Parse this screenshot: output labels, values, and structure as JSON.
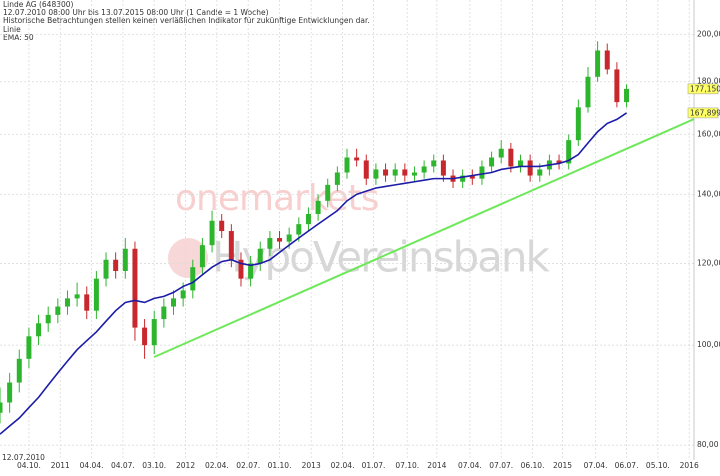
{
  "chart_data": {
    "type": "candlestick",
    "title": "Linde AG (648300)",
    "subtitle": "12.07.2010 08:00 Uhr bis 13.07.2015 08:00 Uhr (1 Candle = 1 Woche)",
    "disclaimer": "Historische Betrachtungen stellen keinen verläßlichen Indikator für zukünftige Entwicklungen dar.",
    "watermark": [
      "onemarkets",
      "HypoVereinsbank"
    ],
    "x_start_label": "12.07.2010",
    "x": [
      "2010-07-12",
      "2010-08-09",
      "2010-09-06",
      "2010-10-04",
      "2010-11-01",
      "2010-11-29",
      "2010-12-27",
      "2011-01-24",
      "2011-02-21",
      "2011-03-21",
      "2011-04-18",
      "2011-05-16",
      "2011-06-13",
      "2011-07-11",
      "2011-08-08",
      "2011-09-05",
      "2011-10-03",
      "2011-10-31",
      "2011-11-28",
      "2011-12-26",
      "2012-01-23",
      "2012-02-20",
      "2012-03-19",
      "2012-04-16",
      "2012-05-14",
      "2012-06-11",
      "2012-07-09",
      "2012-08-06",
      "2012-09-03",
      "2012-10-01",
      "2012-10-29",
      "2012-11-26",
      "2012-12-24",
      "2013-01-21",
      "2013-02-18",
      "2013-03-18",
      "2013-04-15",
      "2013-05-13",
      "2013-06-10",
      "2013-07-08",
      "2013-08-05",
      "2013-09-02",
      "2013-09-30",
      "2013-10-28",
      "2013-11-25",
      "2013-12-23",
      "2014-01-20",
      "2014-02-17",
      "2014-03-17",
      "2014-04-14",
      "2014-05-12",
      "2014-06-09",
      "2014-07-07",
      "2014-08-04",
      "2014-09-01",
      "2014-09-29",
      "2014-10-27",
      "2014-11-24",
      "2014-12-22",
      "2015-01-19",
      "2015-02-16",
      "2015-03-16",
      "2015-04-13",
      "2015-05-11",
      "2015-06-08",
      "2015-07-06"
    ],
    "open": [
      86,
      88,
      92,
      97,
      102,
      105,
      107,
      109,
      111,
      112,
      108,
      116,
      121,
      118,
      124,
      104,
      100,
      106,
      109,
      111,
      113,
      119,
      125,
      132,
      129,
      121,
      116,
      120,
      124,
      127,
      126,
      128,
      131,
      134,
      138,
      143,
      147,
      152,
      151,
      145,
      148,
      146,
      148,
      146,
      147,
      149,
      151,
      146,
      144,
      146,
      145,
      149,
      152,
      155,
      149,
      151,
      146,
      148,
      151,
      150,
      158,
      170,
      182,
      193,
      185,
      172
    ],
    "high": [
      91,
      94,
      99,
      104,
      107,
      109,
      111,
      113,
      115,
      114,
      118,
      123,
      123,
      127,
      126,
      106,
      108,
      111,
      113,
      115,
      121,
      127,
      135,
      134,
      131,
      123,
      122,
      126,
      129,
      129,
      130,
      133,
      136,
      140,
      145,
      149,
      155,
      155,
      153,
      150,
      150,
      150,
      150,
      149,
      151,
      153,
      153,
      148,
      148,
      148,
      151,
      154,
      158,
      157,
      153,
      153,
      150,
      153,
      153,
      160,
      173,
      186,
      197,
      196,
      188,
      179
    ],
    "low": [
      84,
      86,
      90,
      95,
      100,
      103,
      105,
      107,
      109,
      106,
      106,
      114,
      116,
      116,
      101,
      97,
      98,
      104,
      107,
      109,
      111,
      117,
      123,
      127,
      119,
      114,
      114,
      118,
      122,
      124,
      124,
      126,
      129,
      132,
      136,
      141,
      145,
      149,
      143,
      143,
      144,
      144,
      144,
      144,
      145,
      147,
      144,
      142,
      142,
      143,
      143,
      147,
      150,
      147,
      147,
      144,
      144,
      146,
      148,
      148,
      156,
      168,
      180,
      183,
      170,
      170
    ],
    "close": [
      88,
      92,
      97,
      102,
      105,
      107,
      109,
      111,
      112,
      108,
      116,
      121,
      118,
      124,
      104,
      100,
      106,
      109,
      111,
      113,
      119,
      125,
      132,
      129,
      121,
      116,
      120,
      124,
      127,
      126,
      128,
      131,
      134,
      138,
      143,
      147,
      152,
      151,
      145,
      148,
      146,
      148,
      146,
      147,
      149,
      151,
      146,
      144,
      146,
      145,
      149,
      152,
      155,
      149,
      151,
      146,
      148,
      151,
      150,
      158,
      170,
      182,
      193,
      185,
      172,
      177.15
    ],
    "up_color": "#2db52d",
    "down_color": "#c8282d",
    "series": [
      {
        "name": "EMA: 50",
        "color": "#1c1ca8",
        "values": [
          82,
          83.5,
          85,
          87,
          89,
          91.5,
          94,
          96.5,
          99,
          101,
          103,
          105.5,
          108,
          110,
          110.5,
          110,
          111,
          111.5,
          112.5,
          114,
          115,
          117,
          119,
          120.5,
          121,
          120,
          119.5,
          120,
          121,
          123,
          125,
          127,
          129,
          131,
          133,
          135,
          138,
          140,
          141,
          142,
          142.5,
          143,
          143.5,
          144,
          144.5,
          145,
          145,
          145,
          145.5,
          146,
          146.5,
          147,
          148,
          148.5,
          149,
          149,
          149,
          149.5,
          150,
          151,
          153,
          157,
          161,
          164,
          165.5,
          167.899
        ]
      }
    ],
    "trend_line": {
      "name": "Linie",
      "color": "#6ee85a",
      "x": [
        "2011-10-03",
        "2016-01-18"
      ],
      "values": [
        97.4,
        165.6
      ]
    },
    "price_tags": [
      {
        "value": 177.15,
        "label": "177,150"
      },
      {
        "value": 167.899,
        "label": "167,899"
      }
    ],
    "price_tag_color": "#ffff66",
    "xlim": [
      "2010-07-12",
      "2016-01-18"
    ],
    "xticks": [
      {
        "value": "2010-10-04",
        "label": "04.10."
      },
      {
        "value": "2011-01-03",
        "label": "2011"
      },
      {
        "value": "2011-04-04",
        "label": "04.04."
      },
      {
        "value": "2011-07-04",
        "label": "04.07."
      },
      {
        "value": "2011-10-03",
        "label": "03.10."
      },
      {
        "value": "2012-01-02",
        "label": "2012"
      },
      {
        "value": "2012-04-02",
        "label": "02.04."
      },
      {
        "value": "2012-07-02",
        "label": "02.07."
      },
      {
        "value": "2012-10-01",
        "label": "01.10."
      },
      {
        "value": "2013-01-01",
        "label": "2013"
      },
      {
        "value": "2013-04-02",
        "label": "02.04."
      },
      {
        "value": "2013-07-01",
        "label": "01.07."
      },
      {
        "value": "2013-10-07",
        "label": "07.10."
      },
      {
        "value": "2014-01-01",
        "label": "2014"
      },
      {
        "value": "2014-04-07",
        "label": "07.04."
      },
      {
        "value": "2014-07-07",
        "label": "07.07."
      },
      {
        "value": "2014-10-06",
        "label": "06.10."
      },
      {
        "value": "2015-01-01",
        "label": "2015"
      },
      {
        "value": "2015-04-07",
        "label": "07.04."
      },
      {
        "value": "2015-07-06",
        "label": "06.07."
      },
      {
        "value": "2015-10-05",
        "label": "05.10."
      },
      {
        "value": "2016-01-04",
        "label": "2016"
      }
    ],
    "log_y": true,
    "ylim": [
      77.4,
      216
    ],
    "yticks": [
      {
        "value": 80,
        "label": "80,00"
      },
      {
        "value": 100,
        "label": "100,00"
      },
      {
        "value": 120,
        "label": "120,00"
      },
      {
        "value": 140,
        "label": "140,00"
      },
      {
        "value": 160,
        "label": "160,00"
      },
      {
        "value": 180,
        "label": "180,00"
      },
      {
        "value": 200,
        "label": "200,00"
      }
    ],
    "grid": true
  }
}
